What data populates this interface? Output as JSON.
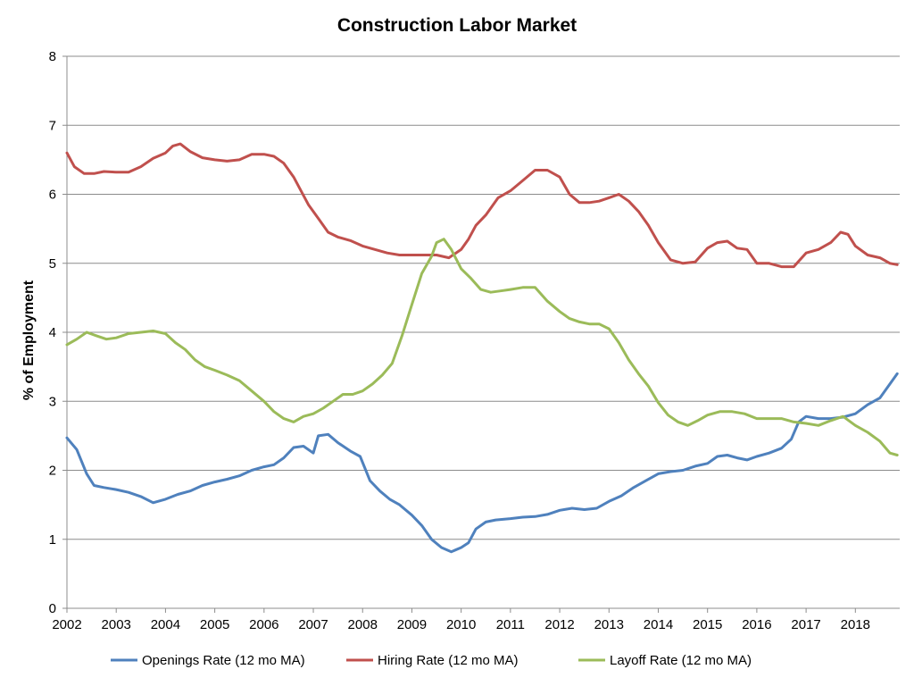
{
  "chart_data": {
    "type": "line",
    "title": "Construction Labor Market",
    "xlabel": "",
    "ylabel": "% of Employment",
    "xlim": [
      2002,
      2018.9
    ],
    "ylim": [
      0,
      8
    ],
    "yticks": [
      0,
      1,
      2,
      3,
      4,
      5,
      6,
      7,
      8
    ],
    "xticks": [
      2002,
      2003,
      2004,
      2005,
      2006,
      2007,
      2008,
      2009,
      2010,
      2011,
      2012,
      2013,
      2014,
      2015,
      2016,
      2017,
      2018
    ],
    "grid": "horizontal",
    "legend": "bottom",
    "series": [
      {
        "name": "Openings Rate (12 mo MA)",
        "color": "#4F81BD",
        "points": [
          [
            2002.0,
            2.47
          ],
          [
            2002.2,
            2.3
          ],
          [
            2002.4,
            1.95
          ],
          [
            2002.55,
            1.78
          ],
          [
            2002.75,
            1.75
          ],
          [
            2003.0,
            1.72
          ],
          [
            2003.25,
            1.68
          ],
          [
            2003.5,
            1.62
          ],
          [
            2003.75,
            1.53
          ],
          [
            2004.0,
            1.58
          ],
          [
            2004.25,
            1.65
          ],
          [
            2004.5,
            1.7
          ],
          [
            2004.75,
            1.78
          ],
          [
            2005.0,
            1.83
          ],
          [
            2005.25,
            1.87
          ],
          [
            2005.5,
            1.92
          ],
          [
            2005.75,
            2.0
          ],
          [
            2006.0,
            2.05
          ],
          [
            2006.2,
            2.08
          ],
          [
            2006.4,
            2.18
          ],
          [
            2006.6,
            2.33
          ],
          [
            2006.8,
            2.35
          ],
          [
            2007.0,
            2.25
          ],
          [
            2007.1,
            2.5
          ],
          [
            2007.3,
            2.52
          ],
          [
            2007.5,
            2.4
          ],
          [
            2007.75,
            2.28
          ],
          [
            2007.95,
            2.2
          ],
          [
            2008.15,
            1.85
          ],
          [
            2008.35,
            1.7
          ],
          [
            2008.55,
            1.58
          ],
          [
            2008.75,
            1.5
          ],
          [
            2009.0,
            1.35
          ],
          [
            2009.2,
            1.2
          ],
          [
            2009.4,
            1.0
          ],
          [
            2009.6,
            0.88
          ],
          [
            2009.8,
            0.82
          ],
          [
            2010.0,
            0.88
          ],
          [
            2010.15,
            0.95
          ],
          [
            2010.3,
            1.15
          ],
          [
            2010.5,
            1.25
          ],
          [
            2010.7,
            1.28
          ],
          [
            2011.0,
            1.3
          ],
          [
            2011.25,
            1.32
          ],
          [
            2011.5,
            1.33
          ],
          [
            2011.75,
            1.36
          ],
          [
            2012.0,
            1.42
          ],
          [
            2012.25,
            1.45
          ],
          [
            2012.5,
            1.43
          ],
          [
            2012.75,
            1.45
          ],
          [
            2013.0,
            1.55
          ],
          [
            2013.25,
            1.63
          ],
          [
            2013.5,
            1.75
          ],
          [
            2013.75,
            1.85
          ],
          [
            2014.0,
            1.95
          ],
          [
            2014.25,
            1.98
          ],
          [
            2014.5,
            2.0
          ],
          [
            2014.75,
            2.06
          ],
          [
            2015.0,
            2.1
          ],
          [
            2015.2,
            2.2
          ],
          [
            2015.4,
            2.22
          ],
          [
            2015.6,
            2.18
          ],
          [
            2015.8,
            2.15
          ],
          [
            2016.0,
            2.2
          ],
          [
            2016.25,
            2.25
          ],
          [
            2016.5,
            2.32
          ],
          [
            2016.7,
            2.45
          ],
          [
            2016.85,
            2.7
          ],
          [
            2017.0,
            2.78
          ],
          [
            2017.25,
            2.75
          ],
          [
            2017.5,
            2.75
          ],
          [
            2017.75,
            2.77
          ],
          [
            2018.0,
            2.82
          ],
          [
            2018.25,
            2.95
          ],
          [
            2018.5,
            3.05
          ],
          [
            2018.7,
            3.25
          ],
          [
            2018.85,
            3.4
          ]
        ]
      },
      {
        "name": "Hiring Rate (12 mo MA)",
        "color": "#C0504D",
        "points": [
          [
            2002.0,
            6.6
          ],
          [
            2002.15,
            6.4
          ],
          [
            2002.35,
            6.3
          ],
          [
            2002.55,
            6.3
          ],
          [
            2002.75,
            6.33
          ],
          [
            2003.0,
            6.32
          ],
          [
            2003.25,
            6.32
          ],
          [
            2003.5,
            6.4
          ],
          [
            2003.75,
            6.52
          ],
          [
            2004.0,
            6.6
          ],
          [
            2004.15,
            6.7
          ],
          [
            2004.3,
            6.73
          ],
          [
            2004.5,
            6.62
          ],
          [
            2004.75,
            6.53
          ],
          [
            2005.0,
            6.5
          ],
          [
            2005.25,
            6.48
          ],
          [
            2005.5,
            6.5
          ],
          [
            2005.75,
            6.58
          ],
          [
            2006.0,
            6.58
          ],
          [
            2006.2,
            6.55
          ],
          [
            2006.4,
            6.45
          ],
          [
            2006.6,
            6.25
          ],
          [
            2006.75,
            6.05
          ],
          [
            2006.9,
            5.85
          ],
          [
            2007.1,
            5.65
          ],
          [
            2007.3,
            5.45
          ],
          [
            2007.5,
            5.38
          ],
          [
            2007.75,
            5.33
          ],
          [
            2008.0,
            5.25
          ],
          [
            2008.25,
            5.2
          ],
          [
            2008.5,
            5.15
          ],
          [
            2008.75,
            5.12
          ],
          [
            2009.0,
            5.12
          ],
          [
            2009.25,
            5.12
          ],
          [
            2009.5,
            5.12
          ],
          [
            2009.75,
            5.08
          ],
          [
            2010.0,
            5.2
          ],
          [
            2010.15,
            5.35
          ],
          [
            2010.3,
            5.55
          ],
          [
            2010.5,
            5.7
          ],
          [
            2010.75,
            5.95
          ],
          [
            2011.0,
            6.05
          ],
          [
            2011.25,
            6.2
          ],
          [
            2011.5,
            6.35
          ],
          [
            2011.75,
            6.35
          ],
          [
            2012.0,
            6.25
          ],
          [
            2012.2,
            6.0
          ],
          [
            2012.4,
            5.88
          ],
          [
            2012.6,
            5.88
          ],
          [
            2012.8,
            5.9
          ],
          [
            2013.0,
            5.95
          ],
          [
            2013.2,
            6.0
          ],
          [
            2013.4,
            5.9
          ],
          [
            2013.6,
            5.75
          ],
          [
            2013.8,
            5.55
          ],
          [
            2014.0,
            5.3
          ],
          [
            2014.25,
            5.05
          ],
          [
            2014.5,
            5.0
          ],
          [
            2014.75,
            5.02
          ],
          [
            2015.0,
            5.22
          ],
          [
            2015.2,
            5.3
          ],
          [
            2015.4,
            5.32
          ],
          [
            2015.6,
            5.22
          ],
          [
            2015.8,
            5.2
          ],
          [
            2016.0,
            5.0
          ],
          [
            2016.25,
            5.0
          ],
          [
            2016.5,
            4.95
          ],
          [
            2016.75,
            4.95
          ],
          [
            2017.0,
            5.15
          ],
          [
            2017.25,
            5.2
          ],
          [
            2017.5,
            5.3
          ],
          [
            2017.7,
            5.45
          ],
          [
            2017.85,
            5.42
          ],
          [
            2018.0,
            5.25
          ],
          [
            2018.25,
            5.12
          ],
          [
            2018.5,
            5.08
          ],
          [
            2018.7,
            5.0
          ],
          [
            2018.85,
            4.98
          ]
        ]
      },
      {
        "name": "Layoff Rate (12 mo MA)",
        "color": "#9BBB59",
        "points": [
          [
            2002.0,
            3.82
          ],
          [
            2002.2,
            3.9
          ],
          [
            2002.4,
            4.0
          ],
          [
            2002.6,
            3.95
          ],
          [
            2002.8,
            3.9
          ],
          [
            2003.0,
            3.92
          ],
          [
            2003.25,
            3.98
          ],
          [
            2003.5,
            4.0
          ],
          [
            2003.75,
            4.02
          ],
          [
            2004.0,
            3.98
          ],
          [
            2004.2,
            3.85
          ],
          [
            2004.4,
            3.75
          ],
          [
            2004.6,
            3.6
          ],
          [
            2004.8,
            3.5
          ],
          [
            2005.0,
            3.45
          ],
          [
            2005.25,
            3.38
          ],
          [
            2005.5,
            3.3
          ],
          [
            2005.75,
            3.15
          ],
          [
            2006.0,
            3.0
          ],
          [
            2006.2,
            2.85
          ],
          [
            2006.4,
            2.75
          ],
          [
            2006.6,
            2.7
          ],
          [
            2006.8,
            2.78
          ],
          [
            2007.0,
            2.82
          ],
          [
            2007.2,
            2.9
          ],
          [
            2007.4,
            3.0
          ],
          [
            2007.6,
            3.1
          ],
          [
            2007.8,
            3.1
          ],
          [
            2008.0,
            3.15
          ],
          [
            2008.2,
            3.25
          ],
          [
            2008.4,
            3.38
          ],
          [
            2008.6,
            3.55
          ],
          [
            2008.8,
            3.95
          ],
          [
            2009.0,
            4.4
          ],
          [
            2009.2,
            4.85
          ],
          [
            2009.4,
            5.1
          ],
          [
            2009.5,
            5.3
          ],
          [
            2009.65,
            5.35
          ],
          [
            2009.8,
            5.2
          ],
          [
            2010.0,
            4.92
          ],
          [
            2010.2,
            4.78
          ],
          [
            2010.4,
            4.62
          ],
          [
            2010.6,
            4.58
          ],
          [
            2010.8,
            4.6
          ],
          [
            2011.0,
            4.62
          ],
          [
            2011.25,
            4.65
          ],
          [
            2011.5,
            4.65
          ],
          [
            2011.75,
            4.45
          ],
          [
            2012.0,
            4.3
          ],
          [
            2012.2,
            4.2
          ],
          [
            2012.4,
            4.15
          ],
          [
            2012.6,
            4.12
          ],
          [
            2012.8,
            4.12
          ],
          [
            2013.0,
            4.05
          ],
          [
            2013.2,
            3.85
          ],
          [
            2013.4,
            3.6
          ],
          [
            2013.6,
            3.4
          ],
          [
            2013.8,
            3.22
          ],
          [
            2014.0,
            2.98
          ],
          [
            2014.2,
            2.8
          ],
          [
            2014.4,
            2.7
          ],
          [
            2014.6,
            2.65
          ],
          [
            2014.8,
            2.72
          ],
          [
            2015.0,
            2.8
          ],
          [
            2015.25,
            2.85
          ],
          [
            2015.5,
            2.85
          ],
          [
            2015.75,
            2.82
          ],
          [
            2016.0,
            2.75
          ],
          [
            2016.25,
            2.75
          ],
          [
            2016.5,
            2.75
          ],
          [
            2016.75,
            2.7
          ],
          [
            2017.0,
            2.68
          ],
          [
            2017.25,
            2.65
          ],
          [
            2017.5,
            2.72
          ],
          [
            2017.75,
            2.78
          ],
          [
            2018.0,
            2.65
          ],
          [
            2018.25,
            2.55
          ],
          [
            2018.5,
            2.42
          ],
          [
            2018.7,
            2.25
          ],
          [
            2018.85,
            2.22
          ]
        ]
      }
    ]
  }
}
